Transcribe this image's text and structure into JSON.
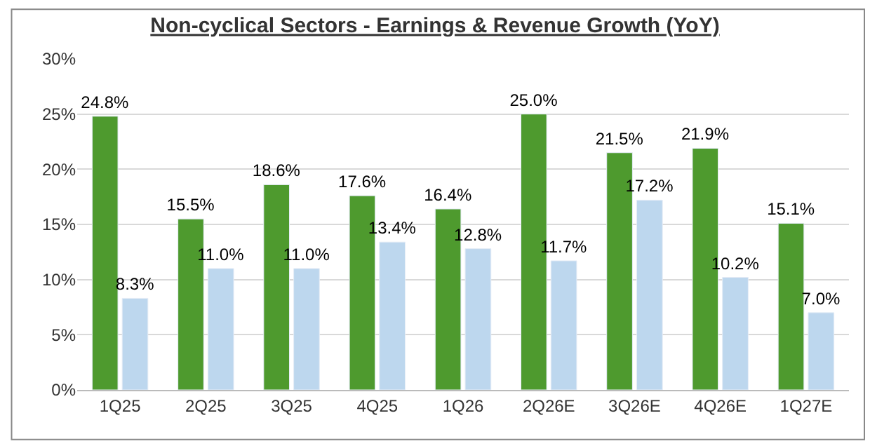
{
  "chart_data": {
    "type": "bar",
    "title": "Non-cyclical Sectors - Earnings & Revenue Growth (YoY)",
    "categories": [
      "1Q25",
      "2Q25",
      "3Q25",
      "4Q25",
      "1Q26",
      "2Q26E",
      "3Q26E",
      "4Q26E",
      "1Q27E"
    ],
    "series": [
      {
        "color": "#4e9a2e",
        "values": [
          24.8,
          15.5,
          18.6,
          17.6,
          16.4,
          25.0,
          21.5,
          21.9,
          15.1
        ],
        "value_labels": [
          "24.8%",
          "15.5%",
          "18.6%",
          "17.6%",
          "16.4%",
          "25.0%",
          "21.5%",
          "21.9%",
          "15.1%"
        ]
      },
      {
        "color": "#bdd7ee",
        "values": [
          8.3,
          11.0,
          11.0,
          13.4,
          12.8,
          11.7,
          17.2,
          10.2,
          7.0
        ],
        "value_labels": [
          "8.3%",
          "11.0%",
          "11.0%",
          "13.4%",
          "12.8%",
          "11.7%",
          "17.2%",
          "10.2%",
          "7.0%"
        ]
      }
    ],
    "ylim": [
      0,
      30
    ],
    "yticks": [
      {
        "value": 0,
        "label": "0%"
      },
      {
        "value": 5,
        "label": "5%"
      },
      {
        "value": 10,
        "label": "10%"
      },
      {
        "value": 15,
        "label": "15%"
      },
      {
        "value": 20,
        "label": "20%"
      },
      {
        "value": 25,
        "label": "25%"
      },
      {
        "value": 30,
        "label": "30%"
      }
    ],
    "grid": "y"
  }
}
